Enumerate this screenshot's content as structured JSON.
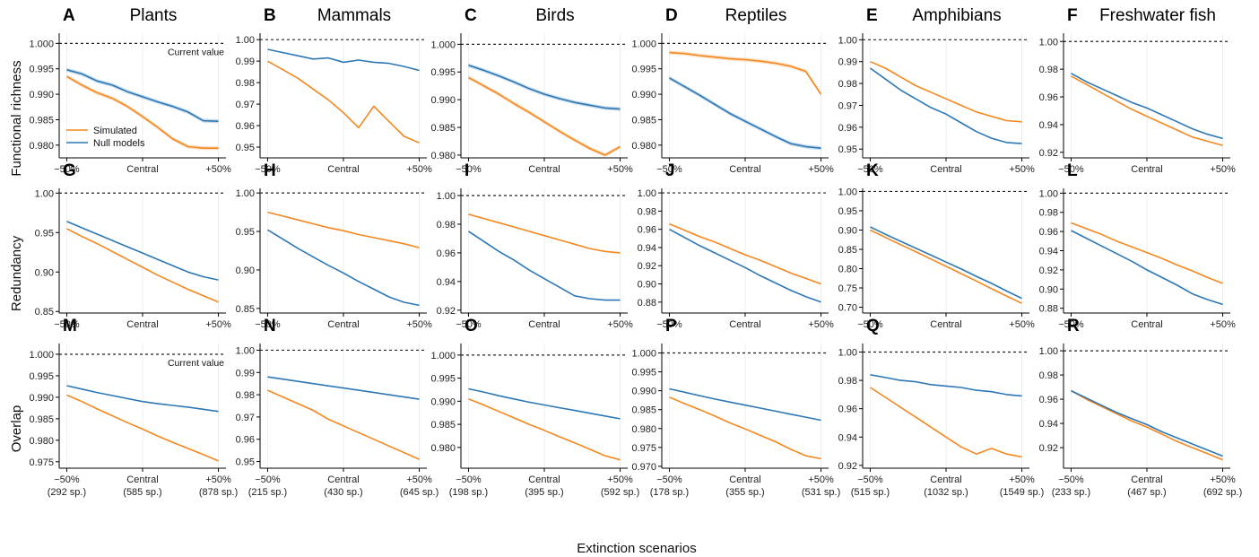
{
  "figure": {
    "x_axis_label": "Extinction scenarios",
    "row_labels": [
      "Functional richness",
      "Redundancy",
      "Overlap"
    ],
    "reference_label": "Current value",
    "x_ticks": [
      "−50%",
      "Central",
      "+50%"
    ],
    "legend": [
      {
        "name": "Simulated",
        "color": "#f5871f"
      },
      {
        "name": "Null models",
        "color": "#2c77b5"
      }
    ],
    "column_titles": [
      "Plants",
      "Mammals",
      "Birds",
      "Reptiles",
      "Amphibians",
      "Freshwater fish"
    ],
    "species_counts": [
      [
        "(292 sp.)",
        "(585 sp.)",
        "(878 sp.)"
      ],
      [
        "(215 sp.)",
        "(430 sp.)",
        "(645 sp.)"
      ],
      [
        "(198 sp.)",
        "(395 sp.)",
        "(592 sp.)"
      ],
      [
        "(178 sp.)",
        "(355 sp.)",
        "(531 sp.)"
      ],
      [
        "(515 sp.)",
        "(1032 sp.)",
        "(1549 sp.)"
      ],
      [
        "(233 sp.)",
        "(467 sp.)",
        "(692 sp.)"
      ]
    ]
  },
  "chart_data": [
    {
      "letter": "A",
      "type": "line",
      "x": [
        -50,
        -40,
        -30,
        -20,
        -10,
        0,
        10,
        20,
        30,
        40,
        50
      ],
      "ylim": [
        0.9775,
        1.002
      ],
      "yticks": [
        "0.980",
        "0.985",
        "0.990",
        "0.995",
        "1.000"
      ],
      "band": true,
      "show_ref_label": true,
      "show_legend": true,
      "series": [
        {
          "name": "Simulated",
          "values": [
            0.9935,
            0.9918,
            0.9903,
            0.9892,
            0.9876,
            0.9856,
            0.9835,
            0.9812,
            0.9797,
            0.9794,
            0.9794
          ]
        },
        {
          "name": "Null models",
          "values": [
            0.9948,
            0.994,
            0.9926,
            0.9918,
            0.9905,
            0.9895,
            0.9885,
            0.9876,
            0.9865,
            0.9848,
            0.9847
          ]
        }
      ]
    },
    {
      "letter": "B",
      "type": "line",
      "x": [
        -50,
        -40,
        -30,
        -20,
        -10,
        0,
        10,
        20,
        30,
        40,
        50
      ],
      "ylim": [
        0.945,
        1.003
      ],
      "yticks": [
        "0.95",
        "0.96",
        "0.97",
        "0.98",
        "0.99",
        "1.00"
      ],
      "band": false,
      "series": [
        {
          "name": "Simulated",
          "values": [
            0.99,
            0.986,
            0.982,
            0.977,
            0.972,
            0.966,
            0.959,
            0.969,
            0.962,
            0.955,
            0.952
          ]
        },
        {
          "name": "Null models",
          "values": [
            0.9955,
            0.994,
            0.9925,
            0.991,
            0.9915,
            0.9895,
            0.9905,
            0.9895,
            0.989,
            0.9875,
            0.9857
          ]
        }
      ]
    },
    {
      "letter": "C",
      "type": "line",
      "x": [
        -50,
        -40,
        -30,
        -20,
        -10,
        0,
        10,
        20,
        30,
        40,
        50
      ],
      "ylim": [
        0.9795,
        1.002
      ],
      "yticks": [
        "0.980",
        "0.985",
        "0.990",
        "0.995",
        "1.000"
      ],
      "band": true,
      "series": [
        {
          "name": "Simulated",
          "values": [
            0.994,
            0.9925,
            0.991,
            0.9893,
            0.9877,
            0.986,
            0.9843,
            0.9827,
            0.9812,
            0.98,
            0.9815
          ]
        },
        {
          "name": "Null models",
          "values": [
            0.9962,
            0.9953,
            0.9943,
            0.9932,
            0.992,
            0.991,
            0.9902,
            0.9895,
            0.989,
            0.9885,
            0.9883
          ]
        }
      ]
    },
    {
      "letter": "D",
      "type": "line",
      "x": [
        -50,
        -40,
        -30,
        -20,
        -10,
        0,
        10,
        20,
        30,
        40,
        50
      ],
      "ylim": [
        0.9775,
        1.002
      ],
      "yticks": [
        "0.980",
        "0.985",
        "0.990",
        "0.995",
        "1.000"
      ],
      "band": true,
      "series": [
        {
          "name": "Simulated",
          "values": [
            0.9982,
            0.998,
            0.9976,
            0.9973,
            0.997,
            0.9968,
            0.9965,
            0.9961,
            0.9955,
            0.9945,
            0.99
          ]
        },
        {
          "name": "Null models",
          "values": [
            0.9932,
            0.9915,
            0.9898,
            0.988,
            0.9862,
            0.9847,
            0.9832,
            0.9817,
            0.9803,
            0.9797,
            0.9794
          ]
        }
      ]
    },
    {
      "letter": "E",
      "type": "line",
      "x": [
        -50,
        -40,
        -30,
        -20,
        -10,
        0,
        10,
        20,
        30,
        40,
        50
      ],
      "ylim": [
        0.946,
        1.003
      ],
      "yticks": [
        "0.95",
        "0.96",
        "0.97",
        "0.98",
        "0.99",
        "1.00"
      ],
      "band": false,
      "series": [
        {
          "name": "Simulated",
          "values": [
            0.99,
            0.987,
            0.983,
            0.979,
            0.976,
            0.973,
            0.97,
            0.967,
            0.965,
            0.963,
            0.9625
          ]
        },
        {
          "name": "Null models",
          "values": [
            0.987,
            0.982,
            0.977,
            0.973,
            0.969,
            0.966,
            0.962,
            0.958,
            0.955,
            0.953,
            0.9525
          ]
        }
      ]
    },
    {
      "letter": "F",
      "type": "line",
      "x": [
        -50,
        -40,
        -30,
        -20,
        -10,
        0,
        10,
        20,
        30,
        40,
        50
      ],
      "ylim": [
        0.916,
        1.006
      ],
      "yticks": [
        "0.92",
        "0.94",
        "0.96",
        "0.98",
        "1.00"
      ],
      "band": false,
      "series": [
        {
          "name": "Simulated",
          "values": [
            0.975,
            0.969,
            0.963,
            0.957,
            0.951,
            0.946,
            0.941,
            0.936,
            0.931,
            0.928,
            0.925
          ]
        },
        {
          "name": "Null models",
          "values": [
            0.977,
            0.971,
            0.966,
            0.961,
            0.956,
            0.952,
            0.947,
            0.942,
            0.937,
            0.933,
            0.93
          ]
        }
      ]
    },
    {
      "letter": "G",
      "type": "line",
      "x": [
        -50,
        -40,
        -30,
        -20,
        -10,
        0,
        10,
        20,
        30,
        40,
        50
      ],
      "ylim": [
        0.848,
        1.006
      ],
      "yticks": [
        "0.85",
        "0.90",
        "0.95",
        "1.00"
      ],
      "band": false,
      "series": [
        {
          "name": "Simulated",
          "values": [
            0.955,
            0.945,
            0.936,
            0.926,
            0.916,
            0.906,
            0.896,
            0.887,
            0.878,
            0.87,
            0.862
          ]
        },
        {
          "name": "Null models",
          "values": [
            0.964,
            0.956,
            0.948,
            0.94,
            0.932,
            0.924,
            0.916,
            0.908,
            0.9,
            0.894,
            0.89
          ]
        }
      ]
    },
    {
      "letter": "H",
      "type": "line",
      "x": [
        -50,
        -40,
        -30,
        -20,
        -10,
        0,
        10,
        20,
        30,
        40,
        50
      ],
      "ylim": [
        0.844,
        1.006
      ],
      "yticks": [
        "0.85",
        "0.90",
        "0.95",
        "1.00"
      ],
      "band": false,
      "series": [
        {
          "name": "Simulated",
          "values": [
            0.975,
            0.97,
            0.965,
            0.96,
            0.955,
            0.951,
            0.946,
            0.942,
            0.938,
            0.934,
            0.929
          ]
        },
        {
          "name": "Null models",
          "values": [
            0.952,
            0.94,
            0.928,
            0.917,
            0.906,
            0.896,
            0.885,
            0.875,
            0.865,
            0.858,
            0.854
          ]
        }
      ]
    },
    {
      "letter": "I",
      "type": "line",
      "x": [
        -50,
        -40,
        -30,
        -20,
        -10,
        0,
        10,
        20,
        30,
        40,
        50
      ],
      "ylim": [
        0.918,
        1.005
      ],
      "yticks": [
        "0.92",
        "0.94",
        "0.96",
        "0.98",
        "1.00"
      ],
      "band": false,
      "series": [
        {
          "name": "Simulated",
          "values": [
            0.987,
            0.984,
            0.981,
            0.978,
            0.975,
            0.972,
            0.969,
            0.966,
            0.963,
            0.961,
            0.96
          ]
        },
        {
          "name": "Null models",
          "values": [
            0.975,
            0.968,
            0.961,
            0.955,
            0.948,
            0.942,
            0.936,
            0.93,
            0.928,
            0.927,
            0.927
          ]
        }
      ]
    },
    {
      "letter": "J",
      "type": "line",
      "x": [
        -50,
        -40,
        -30,
        -20,
        -10,
        0,
        10,
        20,
        30,
        40,
        50
      ],
      "ylim": [
        0.868,
        1.005
      ],
      "yticks": [
        "0.88",
        "0.90",
        "0.92",
        "0.94",
        "0.96",
        "0.98",
        "1.00"
      ],
      "band": false,
      "series": [
        {
          "name": "Simulated",
          "values": [
            0.966,
            0.959,
            0.952,
            0.946,
            0.939,
            0.932,
            0.926,
            0.919,
            0.912,
            0.906,
            0.9
          ]
        },
        {
          "name": "Null models",
          "values": [
            0.96,
            0.951,
            0.942,
            0.934,
            0.926,
            0.918,
            0.909,
            0.901,
            0.893,
            0.886,
            0.88
          ]
        }
      ]
    },
    {
      "letter": "K",
      "type": "line",
      "x": [
        -50,
        -40,
        -30,
        -20,
        -10,
        0,
        10,
        20,
        30,
        40,
        50
      ],
      "ylim": [
        0.685,
        1.008
      ],
      "yticks": [
        "0.70",
        "0.75",
        "0.80",
        "0.85",
        "0.90",
        "0.95",
        "1.00"
      ],
      "band": false,
      "series": [
        {
          "name": "Simulated",
          "values": [
            0.9,
            0.881,
            0.862,
            0.844,
            0.825,
            0.806,
            0.787,
            0.768,
            0.748,
            0.729,
            0.71
          ]
        },
        {
          "name": "Null models",
          "values": [
            0.908,
            0.889,
            0.871,
            0.853,
            0.835,
            0.817,
            0.799,
            0.78,
            0.762,
            0.742,
            0.723
          ]
        }
      ]
    },
    {
      "letter": "L",
      "type": "line",
      "x": [
        -50,
        -40,
        -30,
        -20,
        -10,
        0,
        10,
        20,
        30,
        40,
        50
      ],
      "ylim": [
        0.875,
        1.005
      ],
      "yticks": [
        "0.88",
        "0.90",
        "0.92",
        "0.94",
        "0.96",
        "0.98",
        "1.00"
      ],
      "band": false,
      "series": [
        {
          "name": "Simulated",
          "values": [
            0.969,
            0.963,
            0.957,
            0.95,
            0.944,
            0.938,
            0.932,
            0.925,
            0.919,
            0.912,
            0.906
          ]
        },
        {
          "name": "Null models",
          "values": [
            0.961,
            0.953,
            0.945,
            0.937,
            0.929,
            0.92,
            0.912,
            0.904,
            0.895,
            0.889,
            0.884
          ]
        }
      ]
    },
    {
      "letter": "M",
      "type": "line",
      "x": [
        -50,
        -40,
        -30,
        -20,
        -10,
        0,
        10,
        20,
        30,
        40,
        50
      ],
      "ylim": [
        0.9735,
        1.0025
      ],
      "yticks": [
        "0.975",
        "0.980",
        "0.985",
        "0.990",
        "0.995",
        "1.000"
      ],
      "band": false,
      "show_ref_label": true,
      "series": [
        {
          "name": "Simulated",
          "values": [
            0.9905,
            0.989,
            0.9873,
            0.9857,
            0.9841,
            0.9826,
            0.981,
            0.9795,
            0.9781,
            0.9767,
            0.9752
          ]
        },
        {
          "name": "Null models",
          "values": [
            0.9927,
            0.9919,
            0.9911,
            0.9904,
            0.9897,
            0.989,
            0.9885,
            0.9881,
            0.9877,
            0.9872,
            0.9867
          ]
        }
      ]
    },
    {
      "letter": "N",
      "type": "line",
      "x": [
        -50,
        -40,
        -30,
        -20,
        -10,
        0,
        10,
        20,
        30,
        40,
        50
      ],
      "ylim": [
        0.947,
        1.003
      ],
      "yticks": [
        "0.95",
        "0.96",
        "0.97",
        "0.98",
        "0.99",
        "1.00"
      ],
      "band": false,
      "series": [
        {
          "name": "Simulated",
          "values": [
            0.982,
            0.979,
            0.976,
            0.973,
            0.969,
            0.966,
            0.963,
            0.96,
            0.957,
            0.954,
            0.951
          ]
        },
        {
          "name": "Null models",
          "values": [
            0.988,
            0.987,
            0.986,
            0.985,
            0.984,
            0.983,
            0.982,
            0.981,
            0.98,
            0.979,
            0.978
          ]
        }
      ]
    },
    {
      "letter": "O",
      "type": "line",
      "x": [
        -50,
        -40,
        -30,
        -20,
        -10,
        0,
        10,
        20,
        30,
        40,
        50
      ],
      "ylim": [
        0.9755,
        1.0025
      ],
      "yticks": [
        "0.980",
        "0.985",
        "0.990",
        "0.995",
        "1.000"
      ],
      "band": false,
      "series": [
        {
          "name": "Simulated",
          "values": [
            0.9905,
            0.9892,
            0.9878,
            0.9864,
            0.985,
            0.9837,
            0.9823,
            0.981,
            0.9796,
            0.9782,
            0.9773
          ]
        },
        {
          "name": "Null models",
          "values": [
            0.9927,
            0.992,
            0.9912,
            0.9905,
            0.9898,
            0.9892,
            0.9886,
            0.988,
            0.9874,
            0.9868,
            0.9862
          ]
        }
      ]
    },
    {
      "letter": "P",
      "type": "line",
      "x": [
        -50,
        -40,
        -30,
        -20,
        -10,
        0,
        10,
        20,
        30,
        40,
        50
      ],
      "ylim": [
        0.9695,
        1.0025
      ],
      "yticks": [
        "0.970",
        "0.975",
        "0.980",
        "0.985",
        "0.990",
        "0.995",
        "1.000"
      ],
      "band": false,
      "series": [
        {
          "name": "Simulated",
          "values": [
            0.9883,
            0.9866,
            0.985,
            0.9833,
            0.9815,
            0.9799,
            0.9782,
            0.9765,
            0.9745,
            0.9728,
            0.972
          ]
        },
        {
          "name": "Null models",
          "values": [
            0.9905,
            0.9896,
            0.9887,
            0.9878,
            0.987,
            0.9862,
            0.9854,
            0.9846,
            0.9838,
            0.983,
            0.9822
          ]
        }
      ]
    },
    {
      "letter": "Q",
      "type": "line",
      "x": [
        -50,
        -40,
        -30,
        -20,
        -10,
        0,
        10,
        20,
        30,
        40,
        50
      ],
      "ylim": [
        0.918,
        1.006
      ],
      "yticks": [
        "0.92",
        "0.94",
        "0.96",
        "0.98",
        "1.00"
      ],
      "band": false,
      "series": [
        {
          "name": "Simulated",
          "values": [
            0.975,
            0.968,
            0.961,
            0.954,
            0.947,
            0.94,
            0.933,
            0.928,
            0.932,
            0.928,
            0.926
          ]
        },
        {
          "name": "Null models",
          "values": [
            0.984,
            0.982,
            0.98,
            0.979,
            0.977,
            0.976,
            0.975,
            0.973,
            0.972,
            0.97,
            0.969
          ]
        }
      ]
    },
    {
      "letter": "R",
      "type": "line",
      "x": [
        -50,
        -40,
        -30,
        -20,
        -10,
        0,
        10,
        20,
        30,
        40,
        50
      ],
      "ylim": [
        0.903,
        1.006
      ],
      "yticks": [
        "0.92",
        "0.94",
        "0.96",
        "0.98",
        "1.00"
      ],
      "band": false,
      "series": [
        {
          "name": "Simulated",
          "values": [
            0.967,
            0.96,
            0.954,
            0.948,
            0.942,
            0.937,
            0.931,
            0.925,
            0.92,
            0.915,
            0.91
          ]
        },
        {
          "name": "Null models",
          "values": [
            0.967,
            0.961,
            0.955,
            0.949,
            0.944,
            0.939,
            0.933,
            0.928,
            0.923,
            0.918,
            0.913
          ]
        }
      ]
    }
  ]
}
